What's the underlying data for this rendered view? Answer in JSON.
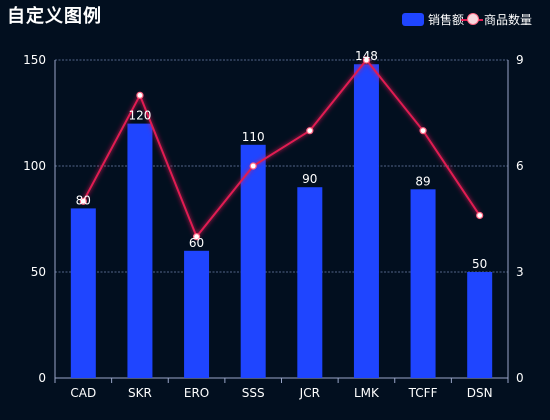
{
  "title": "自定义图例",
  "legend": [
    {
      "label": "销售额",
      "color": "#1f45ff"
    },
    {
      "label": "商品数量",
      "color": "#e11b52"
    }
  ],
  "colors": {
    "bar": "#1f45ff",
    "line": "#e11b52",
    "axis": "#9aa6c8",
    "grid": "#8aa0d0"
  },
  "chart_data": {
    "type": "bar",
    "categories": [
      "CAD",
      "SKR",
      "ERO",
      "SSS",
      "JCR",
      "LMK",
      "TCFF",
      "DSN"
    ],
    "series": [
      {
        "name": "销售额",
        "type": "bar",
        "axis": "left",
        "values": [
          80,
          120,
          60,
          110,
          90,
          148,
          89,
          50
        ]
      },
      {
        "name": "商品数量",
        "type": "line",
        "axis": "right",
        "values": [
          5,
          8,
          4,
          6,
          7,
          9,
          7,
          4.6
        ]
      }
    ],
    "left_axis": {
      "min": 0,
      "max": 150,
      "ticks": [
        0,
        50,
        100,
        150
      ]
    },
    "right_axis": {
      "min": 0,
      "max": 9,
      "ticks": [
        0,
        3,
        6,
        9
      ]
    },
    "grid": true,
    "legend_position": "top-right"
  }
}
